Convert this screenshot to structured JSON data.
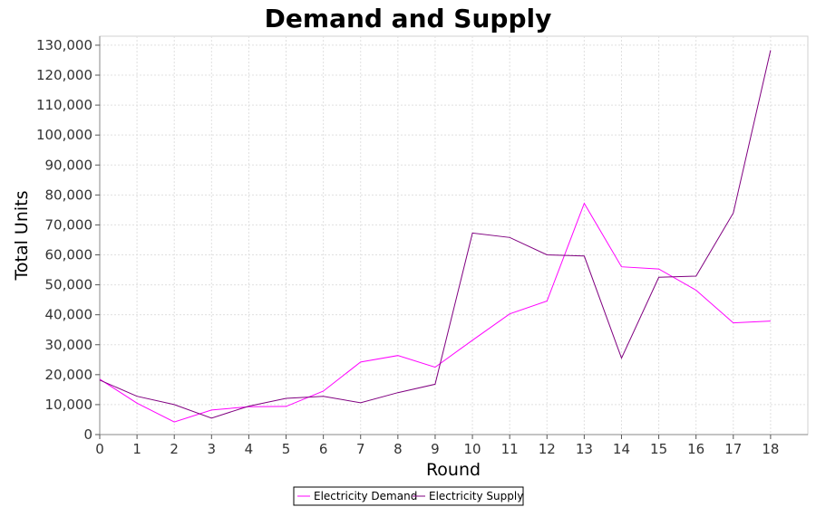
{
  "chart_data": {
    "type": "line",
    "title": "Demand and Supply",
    "xlabel": "Round",
    "ylabel": "Total Units",
    "x": [
      0,
      1,
      2,
      3,
      4,
      5,
      6,
      7,
      8,
      9,
      10,
      11,
      12,
      13,
      14,
      15,
      16,
      17,
      18
    ],
    "xlim": [
      0,
      19
    ],
    "ylim": [
      0,
      133000
    ],
    "y_ticks": [
      0,
      10000,
      20000,
      30000,
      40000,
      50000,
      60000,
      70000,
      80000,
      90000,
      100000,
      110000,
      120000,
      130000
    ],
    "y_tick_labels": [
      "0",
      "10,000",
      "20,000",
      "30,000",
      "40,000",
      "50,000",
      "60,000",
      "70,000",
      "80,000",
      "90,000",
      "100,000",
      "110,000",
      "120,000",
      "130,000"
    ],
    "x_tick_labels": [
      "0",
      "1",
      "2",
      "3",
      "4",
      "5",
      "6",
      "7",
      "8",
      "9",
      "10",
      "11",
      "12",
      "13",
      "14",
      "15",
      "16",
      "17",
      "18"
    ],
    "grid": true,
    "legend_position": "bottom-center",
    "series": [
      {
        "name": "Electricity Demand",
        "color": "#ff00ff",
        "values": [
          18500,
          10500,
          4200,
          8200,
          9300,
          9400,
          14500,
          24200,
          26400,
          22500,
          31500,
          40300,
          44600,
          77200,
          56000,
          55300,
          48200,
          37300,
          37900
        ]
      },
      {
        "name": "Electricity Supply",
        "color": "#800080",
        "values": [
          18200,
          12800,
          10000,
          5500,
          9500,
          12100,
          12800,
          10600,
          14000,
          16800,
          67300,
          65800,
          60000,
          59600,
          25500,
          52500,
          52900,
          74000,
          128300
        ]
      }
    ]
  }
}
